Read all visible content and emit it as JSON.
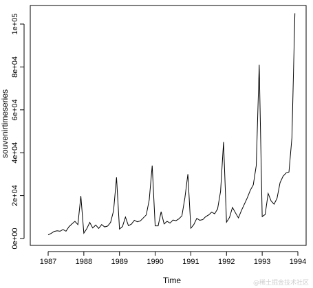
{
  "chart_data": {
    "type": "line",
    "xlabel": "Time",
    "ylabel": "souvenirtimeseries",
    "xlim": [
      1987,
      1994
    ],
    "ylim": [
      0,
      105000
    ],
    "x_ticks": [
      1987,
      1988,
      1989,
      1990,
      1991,
      1992,
      1993,
      1994
    ],
    "x_tick_labels": [
      "1987",
      "1988",
      "1989",
      "1990",
      "1991",
      "1992",
      "1993",
      "1994"
    ],
    "y_ticks": [
      0,
      20000,
      40000,
      60000,
      80000,
      100000
    ],
    "y_tick_labels": [
      "0e+00",
      "2e+04",
      "4e+04",
      "6e+04",
      "8e+04",
      "1e+05"
    ],
    "grid": false,
    "series": [
      {
        "x_start": 1987,
        "frequency": 12,
        "values": [
          1700,
          2400,
          3300,
          3600,
          3400,
          4200,
          3400,
          5500,
          6800,
          8000,
          6500,
          19800,
          2500,
          4600,
          7500,
          4900,
          6300,
          4700,
          6500,
          5400,
          5800,
          7500,
          12900,
          28500,
          4400,
          5600,
          10000,
          6000,
          6700,
          8500,
          7800,
          8200,
          9600,
          11000,
          18000,
          34000,
          5900,
          5900,
          12500,
          6800,
          8000,
          7200,
          8600,
          8300,
          9200,
          10600,
          19000,
          30000,
          4800,
          6500,
          9400,
          8500,
          8800,
          10200,
          11000,
          12300,
          11500,
          13800,
          22000,
          45000,
          7600,
          9800,
          14500,
          12000,
          9600,
          13000,
          16000,
          19000,
          22500,
          25000,
          34000,
          81000,
          10200,
          11200,
          21000,
          17500,
          16000,
          18800,
          26000,
          29000,
          30500,
          31000,
          47000,
          105000
        ]
      }
    ]
  },
  "watermark": "@稀土掘金技术社区"
}
